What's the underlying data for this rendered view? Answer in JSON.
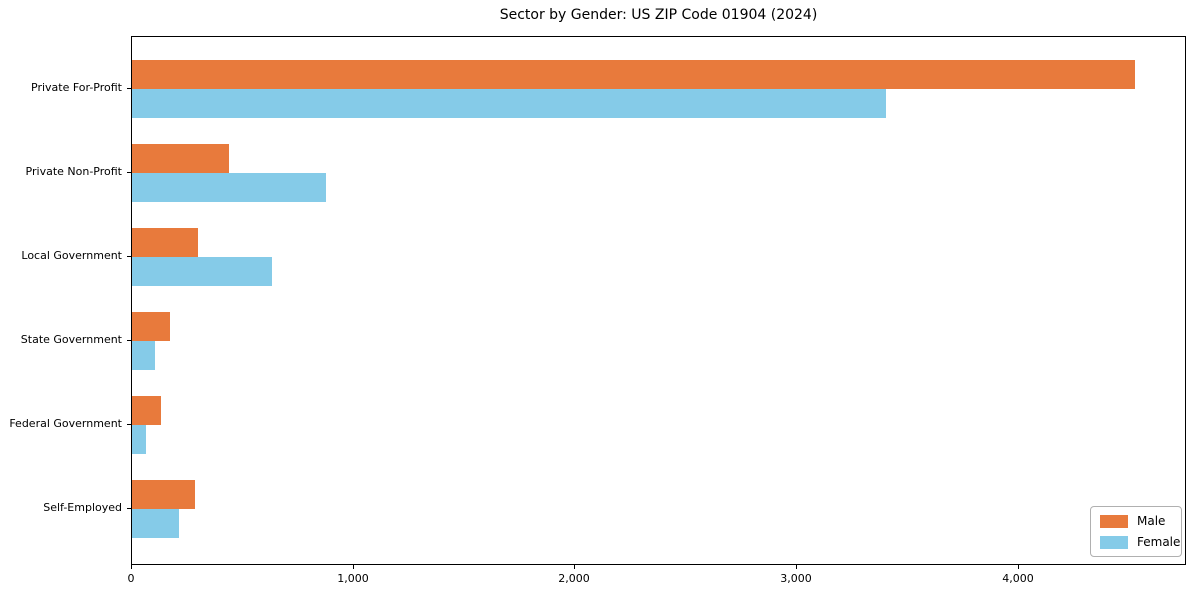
{
  "title": "Sector by Gender: US ZIP Code 01904 (2024)",
  "chart_data": {
    "type": "bar",
    "orientation": "horizontal",
    "title": "Sector by Gender: US ZIP Code 01904 (2024)",
    "xlabel": "",
    "ylabel": "",
    "grid": false,
    "background_color": "#ffffff",
    "categories": [
      "Private For-Profit",
      "Private Non-Profit",
      "Local Government",
      "State Government",
      "Federal Government",
      "Self-Employed"
    ],
    "series": [
      {
        "name": "Male",
        "color": "#e87a3c",
        "values": [
          4523,
          437,
          297,
          171,
          129,
          284
        ]
      },
      {
        "name": "Female",
        "color": "#85cbe8",
        "values": [
          3401,
          874,
          630,
          104,
          64,
          213
        ]
      }
    ],
    "xlim": [
      0,
      4750
    ],
    "xticks": [
      {
        "value": 0,
        "label": "0"
      },
      {
        "value": 1000,
        "label": "1,000"
      },
      {
        "value": 2000,
        "label": "2,000"
      },
      {
        "value": 3000,
        "label": "3,000"
      },
      {
        "value": 4000,
        "label": "4,000"
      }
    ],
    "legend": {
      "position": "lower right",
      "entries": [
        "Male",
        "Female"
      ]
    }
  }
}
